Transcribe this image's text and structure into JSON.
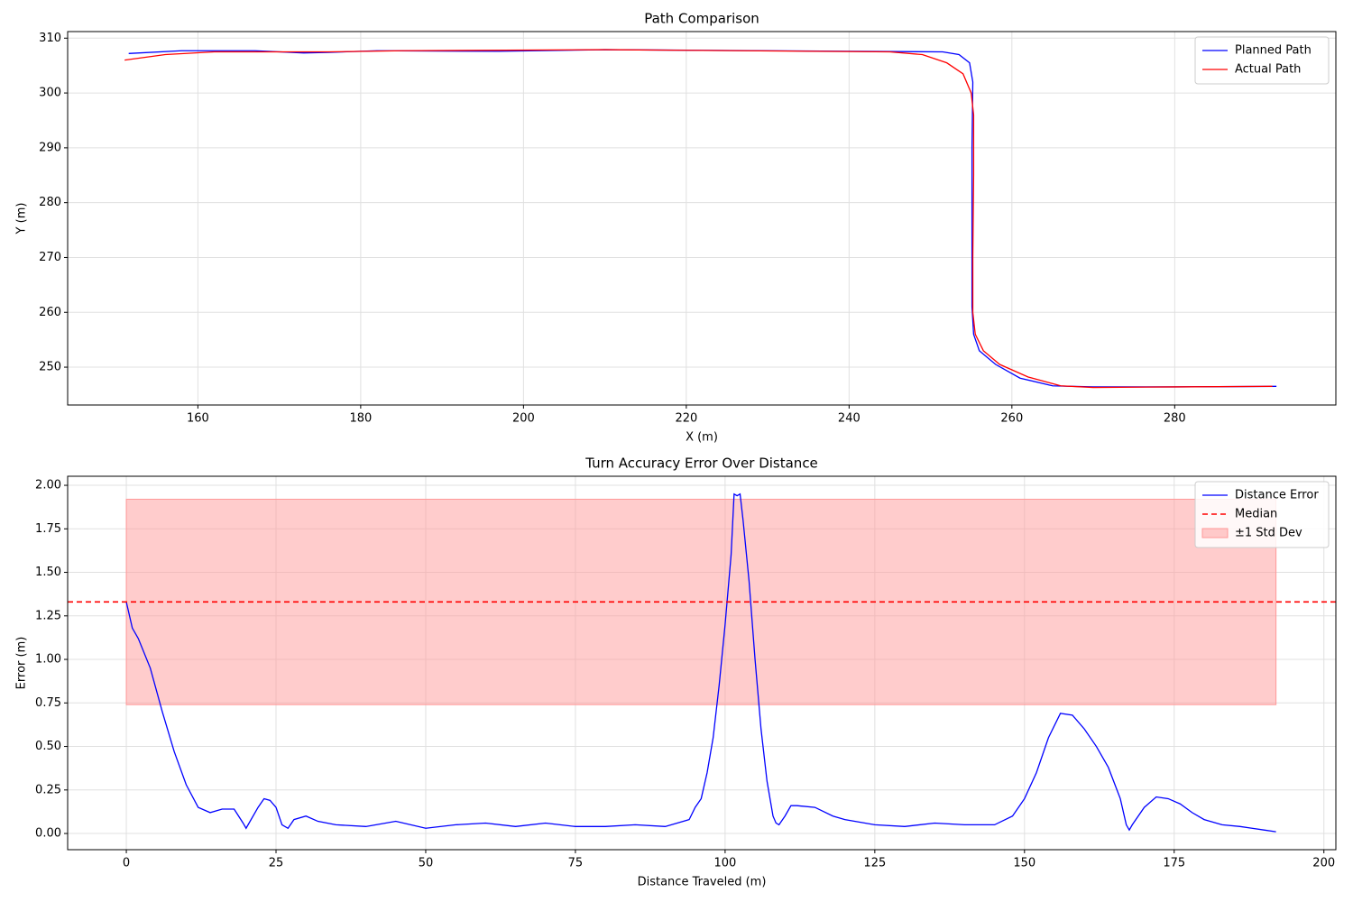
{
  "chart_data": [
    {
      "type": "line",
      "title": "Path Comparison",
      "x_label": "X (m)",
      "y_label": "Y (m)",
      "xlim": [
        144,
        299.8
      ],
      "ylim": [
        243.1,
        311.2
      ],
      "xticks": [
        160,
        180,
        200,
        220,
        240,
        260,
        280
      ],
      "yticks": [
        250,
        260,
        270,
        280,
        290,
        300,
        310
      ],
      "grid": true,
      "legend": "upper right",
      "series": [
        {
          "name": "Planned Path",
          "color": "#0000ff",
          "x": [
            151.5,
            158,
            167,
            173,
            176,
            182,
            197,
            210,
            230,
            251.5,
            253.5,
            254.8,
            255.2,
            255.1,
            255.1,
            255.1,
            255.3,
            256,
            258,
            261,
            265,
            270,
            280,
            292.5
          ],
          "values": [
            307.2,
            307.7,
            307.7,
            307.3,
            307.4,
            307.7,
            307.6,
            307.9,
            307.7,
            307.5,
            307,
            305.5,
            302,
            290,
            270,
            261,
            256,
            253,
            250.5,
            248,
            246.6,
            246.4,
            246.4,
            246.5
          ]
        },
        {
          "name": "Actual Path",
          "color": "#ff0000",
          "x": [
            151,
            156,
            162,
            170,
            176,
            185,
            210,
            245,
            249,
            252,
            254,
            255,
            255.3,
            255.3,
            255.2,
            255.2,
            255.5,
            256.5,
            258.5,
            262,
            266,
            270,
            280,
            292
          ],
          "values": [
            306,
            307,
            307.5,
            307.5,
            307.5,
            307.7,
            307.9,
            307.5,
            307,
            305.5,
            303.5,
            300,
            296,
            285,
            270,
            260,
            256,
            253,
            250.5,
            248.2,
            246.6,
            246.3,
            246.4,
            246.5
          ]
        }
      ]
    },
    {
      "type": "line",
      "title": "Turn Accuracy Error Over Distance",
      "x_label": "Distance Traveled (m)",
      "y_label": "Error (m)",
      "xlim": [
        -9.8,
        202
      ],
      "ylim": [
        -0.093,
        2.052
      ],
      "xticks": [
        0,
        25,
        50,
        75,
        100,
        125,
        150,
        175,
        200
      ],
      "yticks": [
        {
          "value": 0,
          "label": "0.00"
        },
        {
          "value": 0.25,
          "label": "0.25"
        },
        {
          "value": 0.5,
          "label": "0.50"
        },
        {
          "value": 0.75,
          "label": "0.75"
        },
        {
          "value": 1,
          "label": "1.00"
        },
        {
          "value": 1.25,
          "label": "1.25"
        },
        {
          "value": 1.5,
          "label": "1.50"
        },
        {
          "value": 1.75,
          "label": "1.75"
        },
        {
          "value": 2,
          "label": "2.00"
        }
      ],
      "grid": true,
      "legend": "upper right",
      "series": [
        {
          "name": "Distance Error",
          "color": "#0000ff",
          "x": [
            0,
            1,
            2,
            4,
            6,
            8,
            10,
            12,
            14,
            16,
            18,
            19.5,
            20,
            22,
            23,
            24,
            25,
            26,
            27,
            28,
            30,
            32,
            35,
            40,
            45,
            50,
            55,
            60,
            65,
            70,
            75,
            80,
            85,
            90,
            94,
            95,
            96,
            97,
            98,
            99,
            100,
            101,
            101.5,
            102,
            102.5,
            103,
            104,
            105,
            106,
            107,
            108,
            108.5,
            109,
            110,
            111,
            112,
            115,
            118,
            120,
            125,
            130,
            135,
            140,
            145,
            148,
            150,
            152,
            154,
            156,
            158,
            160,
            162,
            164,
            166,
            167,
            167.5,
            168,
            170,
            172,
            174,
            176,
            178,
            180,
            183,
            186,
            188,
            190,
            192
          ],
          "values": [
            1.33,
            1.18,
            1.12,
            0.95,
            0.7,
            0.47,
            0.28,
            0.15,
            0.12,
            0.14,
            0.14,
            0.06,
            0.03,
            0.15,
            0.2,
            0.19,
            0.15,
            0.05,
            0.03,
            0.08,
            0.1,
            0.07,
            0.05,
            0.04,
            0.07,
            0.03,
            0.05,
            0.06,
            0.04,
            0.06,
            0.04,
            0.04,
            0.05,
            0.04,
            0.08,
            0.15,
            0.2,
            0.35,
            0.55,
            0.85,
            1.2,
            1.6,
            1.95,
            1.94,
            1.95,
            1.8,
            1.45,
            1.0,
            0.6,
            0.3,
            0.1,
            0.06,
            0.05,
            0.1,
            0.16,
            0.16,
            0.15,
            0.1,
            0.08,
            0.05,
            0.04,
            0.06,
            0.05,
            0.05,
            0.1,
            0.2,
            0.35,
            0.55,
            0.69,
            0.68,
            0.6,
            0.5,
            0.38,
            0.2,
            0.05,
            0.02,
            0.05,
            0.15,
            0.21,
            0.2,
            0.17,
            0.12,
            0.08,
            0.05,
            0.04,
            0.03,
            0.02,
            0.01
          ]
        }
      ],
      "median": {
        "name": "Median",
        "color": "#ff0000",
        "value": 1.33
      },
      "band": {
        "name": "±1 Std Dev",
        "color": "#ff9999",
        "x_range": [
          0,
          192
        ],
        "y_range": [
          0.74,
          1.92
        ]
      }
    }
  ]
}
